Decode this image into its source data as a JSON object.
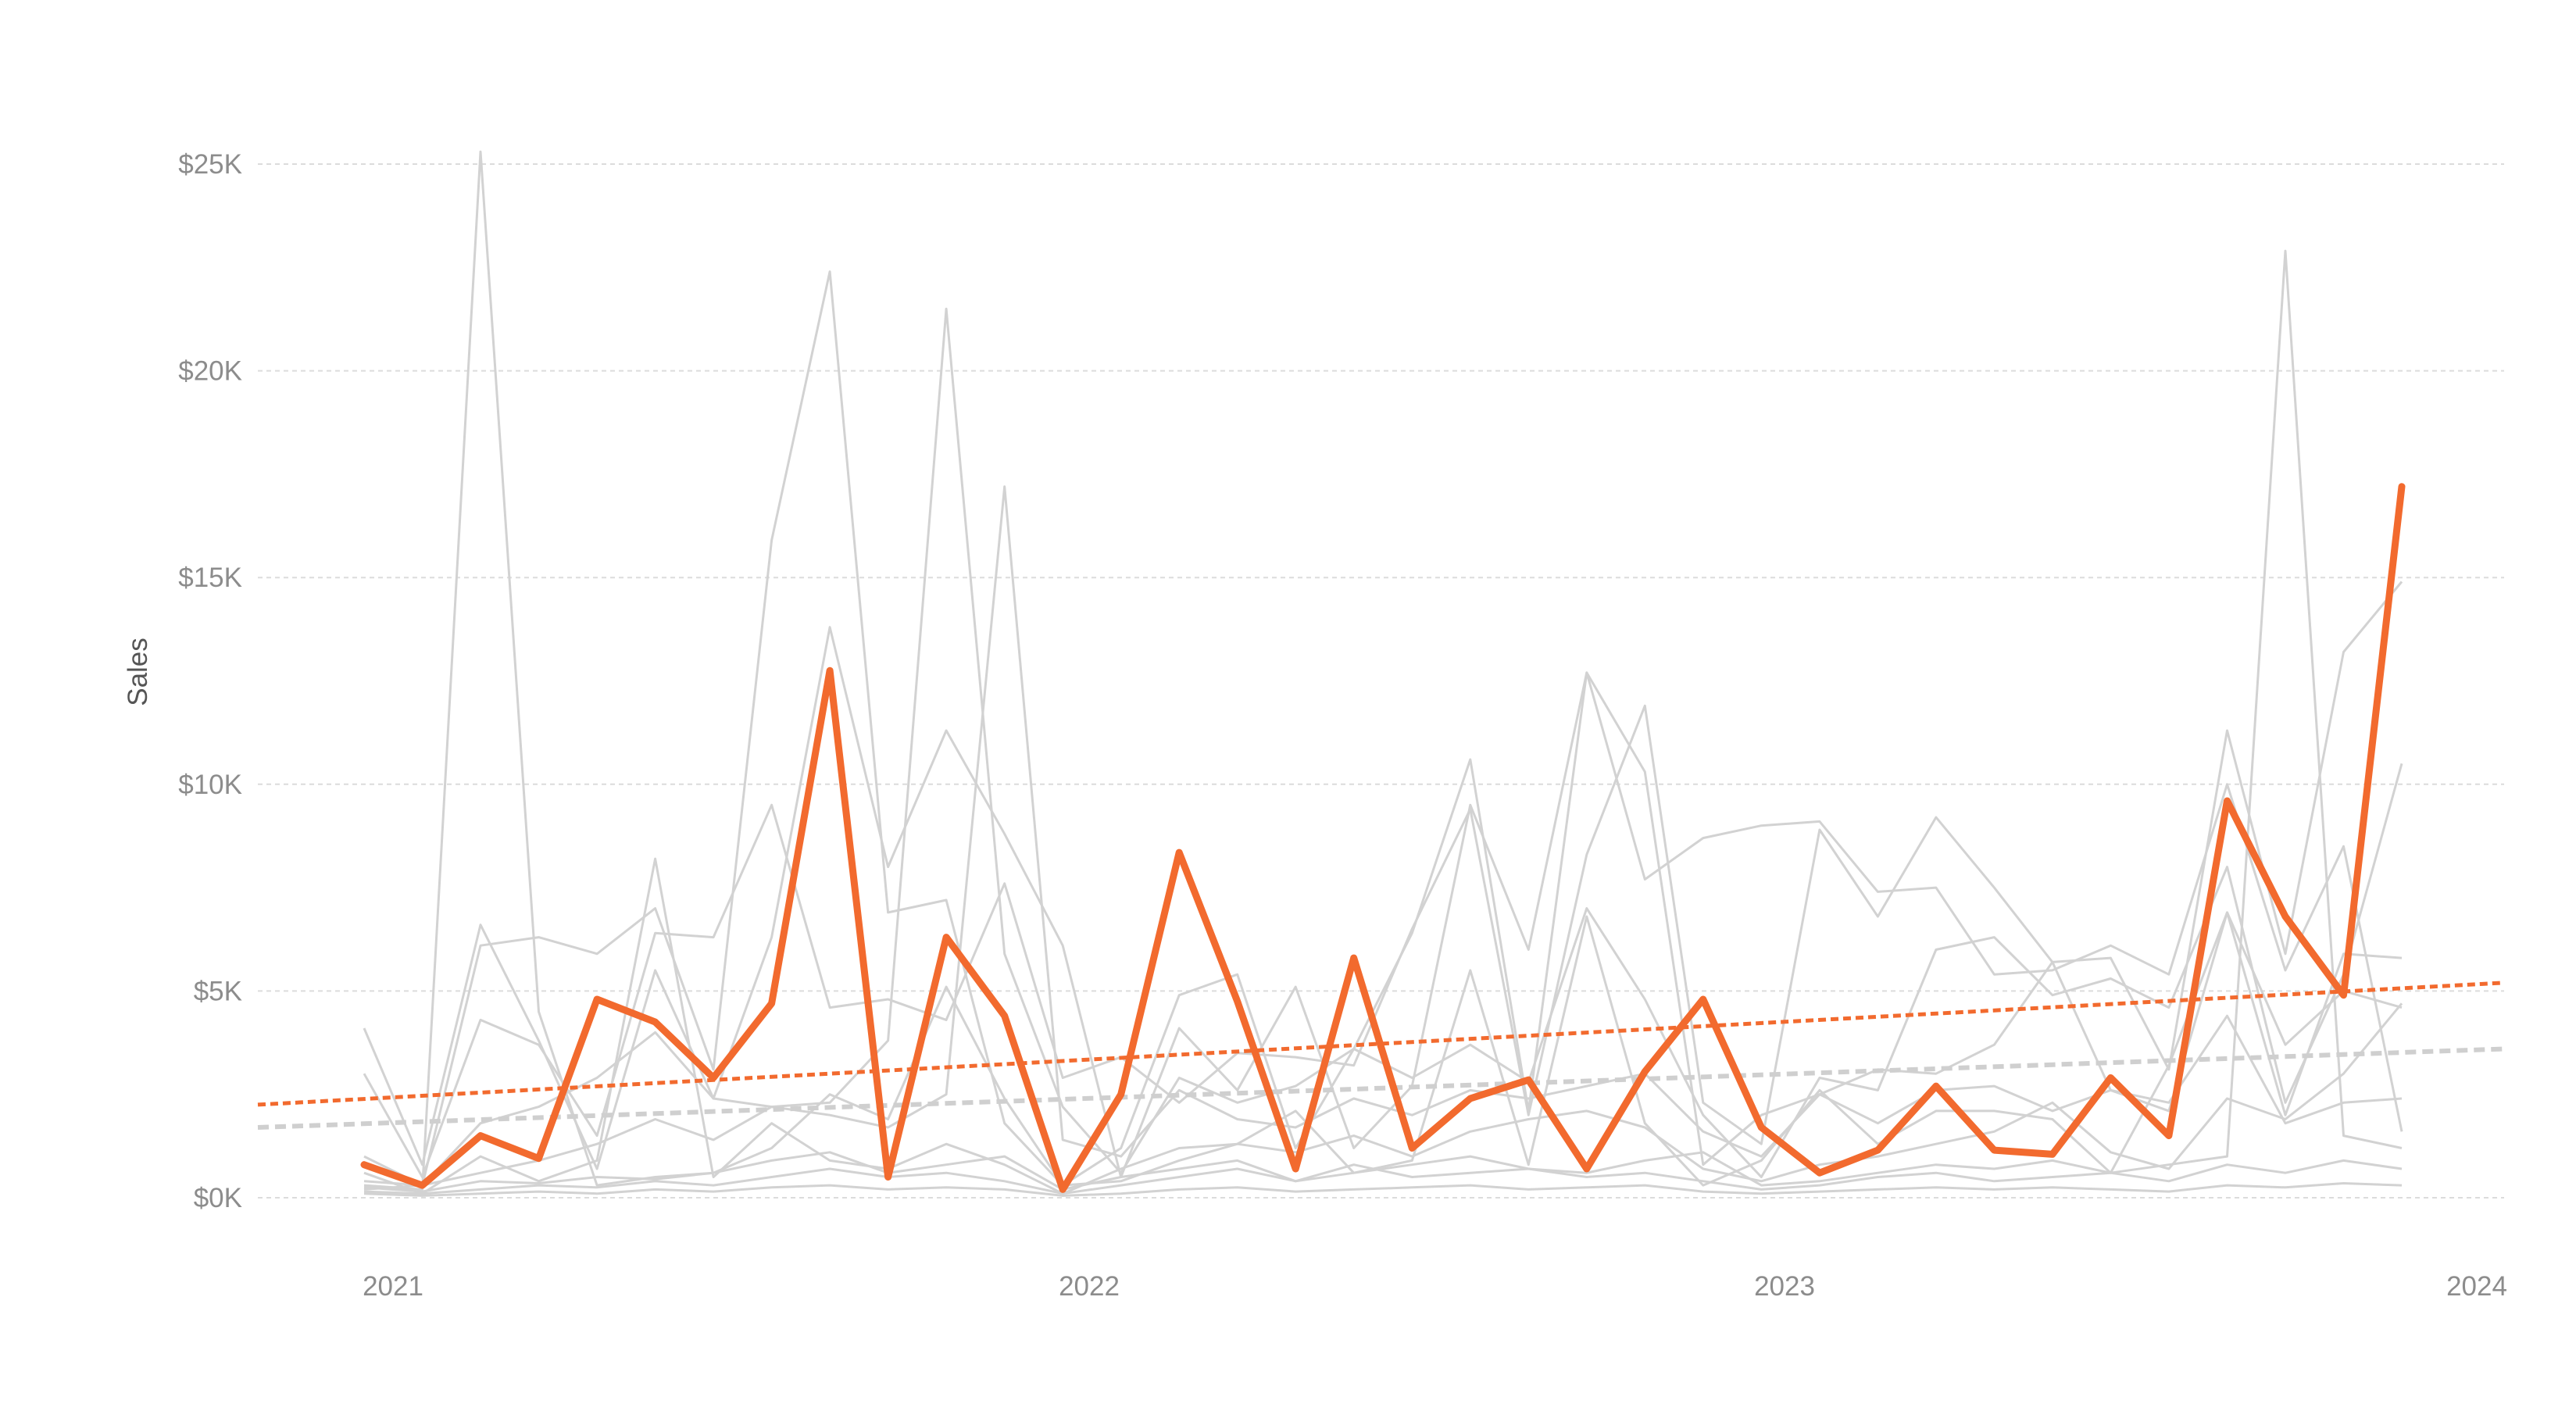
{
  "chart_data": {
    "type": "line",
    "title": "",
    "xlabel": "",
    "ylabel": "Sales",
    "x_ticks": [
      "2021",
      "2022",
      "2023",
      "2024"
    ],
    "y_ticks": [
      "$0K",
      "$5K",
      "$10K",
      "$15K",
      "$20K",
      "$25K"
    ],
    "ylim": [
      0,
      25000
    ],
    "grid": "horizontal dashed",
    "colors": {
      "highlight": "#f26a2e",
      "background_series": "#d2d2d2",
      "grid": "#dcdcdc",
      "trend_background": "#cfcfcf"
    },
    "months": [
      "2021-01",
      "2021-02",
      "2021-03",
      "2021-04",
      "2021-05",
      "2021-06",
      "2021-07",
      "2021-08",
      "2021-09",
      "2021-10",
      "2021-11",
      "2021-12",
      "2022-01",
      "2022-02",
      "2022-03",
      "2022-04",
      "2022-05",
      "2022-06",
      "2022-07",
      "2022-08",
      "2022-09",
      "2022-10",
      "2022-11",
      "2022-12",
      "2023-01",
      "2023-02",
      "2023-03",
      "2023-04",
      "2023-05",
      "2023-06",
      "2023-07",
      "2023-08",
      "2023-09",
      "2023-10",
      "2023-11",
      "2023-12"
    ],
    "highlight_series": {
      "values": [
        800,
        300,
        1500,
        950,
        4800,
        4250,
        2900,
        4700,
        12750,
        500,
        6300,
        4400,
        200,
        2500,
        8350,
        4750,
        700,
        5800,
        1200,
        2400,
        2850,
        700,
        3050,
        4800,
        1700,
        600,
        1150,
        2700,
        1150,
        1050,
        2900,
        1500,
        9600,
        6800,
        4900,
        17200
      ]
    },
    "highlight_trend": {
      "start": 2250,
      "end": 5200
    },
    "background_trend": {
      "start": 1700,
      "end": 3600
    },
    "background_series": [
      {
        "values": [
          300,
          200,
          25300,
          4500,
          300,
          500,
          600,
          900,
          1100,
          600,
          800,
          1000,
          200,
          500,
          700,
          900,
          400,
          600,
          800,
          1000,
          700,
          600,
          900,
          1100,
          300,
          400,
          600,
          800,
          700,
          900,
          600,
          800,
          1000,
          22900,
          1500,
          1200
        ]
      },
      {
        "values": [
          400,
          300,
          6100,
          6300,
          5900,
          7000,
          3100,
          15900,
          22400,
          6900,
          7200,
          1800,
          300,
          1200,
          4900,
          5400,
          1200,
          3600,
          6400,
          10600,
          2100,
          12700,
          10300,
          800,
          2000,
          2500,
          3100,
          3000,
          3700,
          5700,
          5800,
          3100,
          11300,
          5900,
          13200,
          14900
        ]
      },
      {
        "values": [
          4100,
          800,
          6600,
          3800,
          700,
          5500,
          2400,
          6300,
          13800,
          8000,
          11300,
          8800,
          6100,
          500,
          4100,
          2600,
          5100,
          1200,
          2700,
          9500,
          6000,
          12700,
          7700,
          8700,
          9000,
          9100,
          7400,
          7500,
          5400,
          5500,
          6100,
          5400,
          10000,
          5500,
          8500,
          1600
        ]
      },
      {
        "values": [
          3000,
          500,
          4300,
          3700,
          1500,
          6400,
          6300,
          9500,
          4600,
          4800,
          4300,
          7600,
          2900,
          3400,
          2300,
          3500,
          3400,
          3200,
          6500,
          9400,
          2000,
          8300,
          11900,
          2300,
          1300,
          8900,
          6800,
          9200,
          7500,
          5700,
          2600,
          2100,
          6900,
          3700,
          5000,
          4600
        ]
      },
      {
        "values": [
          1000,
          300,
          1800,
          2200,
          2900,
          4000,
          2400,
          2200,
          2300,
          3800,
          21500,
          5900,
          2200,
          600,
          2900,
          2300,
          2700,
          3600,
          2900,
          3700,
          2800,
          7000,
          4800,
          2000,
          500,
          2900,
          2600,
          6000,
          6300,
          4900,
          5300,
          4600,
          8000,
          2300,
          5400,
          10500
        ]
      },
      {
        "values": [
          200,
          300,
          600,
          900,
          1300,
          1900,
          1400,
          2200,
          2000,
          1700,
          2500,
          17200,
          1400,
          1000,
          2600,
          1900,
          1700,
          2400,
          2000,
          2600,
          2400,
          2700,
          3000,
          1600,
          1000,
          2500,
          1800,
          2600,
          2700,
          2100,
          2600,
          2300,
          4400,
          1800,
          2300,
          2400
        ]
      },
      {
        "values": [
          600,
          100,
          1000,
          400,
          900,
          8200,
          500,
          1800,
          900,
          700,
          1300,
          800,
          100,
          700,
          1200,
          1300,
          2100,
          600,
          900,
          5500,
          800,
          6800,
          1800,
          300,
          900,
          2600,
          1300,
          2100,
          2100,
          1900,
          600,
          3200,
          6900,
          2000,
          5900,
          5800
        ]
      },
      {
        "values": [
          250,
          150,
          400,
          350,
          500,
          450,
          600,
          1200,
          2500,
          1900,
          5100,
          2400,
          300,
          400,
          900,
          1300,
          1100,
          1500,
          1000,
          1600,
          1900,
          2100,
          1700,
          700,
          400,
          800,
          1000,
          1300,
          1600,
          2300,
          1100,
          700,
          2400,
          1900,
          3000,
          4700
        ]
      },
      {
        "values": [
          150,
          100,
          200,
          300,
          250,
          400,
          300,
          500,
          700,
          500,
          600,
          400,
          100,
          300,
          500,
          700,
          400,
          800,
          500,
          600,
          700,
          500,
          600,
          400,
          200,
          300,
          500,
          600,
          400,
          500,
          600,
          400,
          800,
          600,
          900,
          700
        ]
      },
      {
        "values": [
          100,
          50,
          100,
          150,
          100,
          200,
          150,
          250,
          300,
          200,
          250,
          200,
          50,
          100,
          200,
          250,
          150,
          200,
          250,
          300,
          200,
          250,
          300,
          150,
          100,
          150,
          200,
          250,
          200,
          250,
          200,
          150,
          300,
          250,
          350,
          300
        ]
      }
    ]
  }
}
